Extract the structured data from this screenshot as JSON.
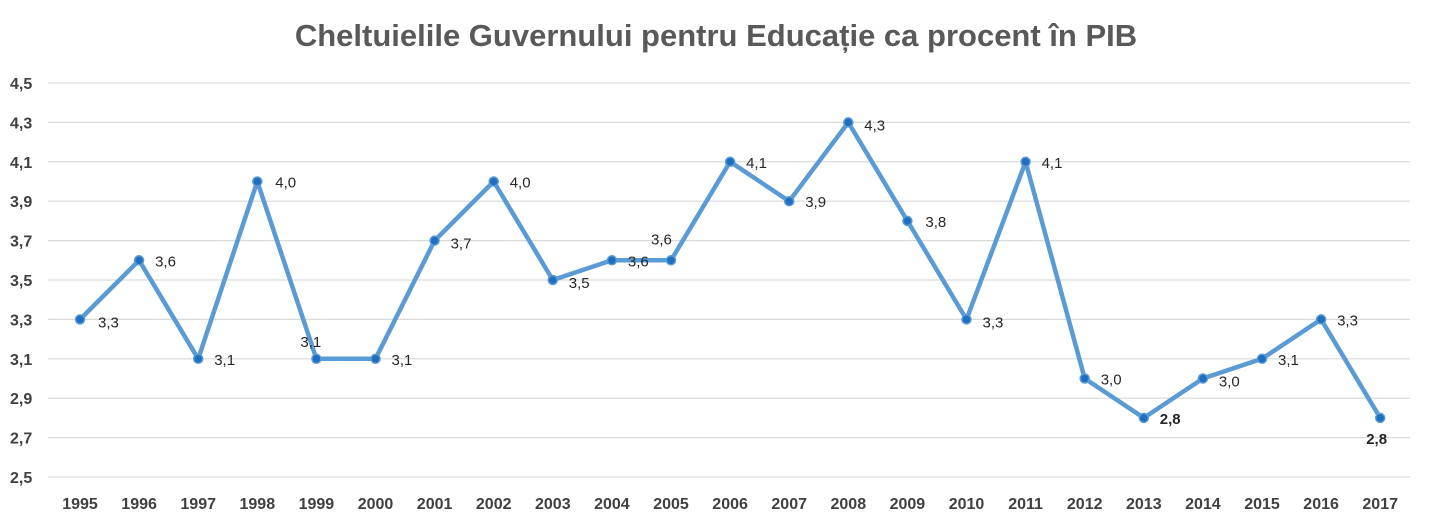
{
  "chart_data": {
    "type": "line",
    "title": "Cheltuielile Guvernului pentru Educație ca procent în PIB",
    "xlabel": "",
    "ylabel": "",
    "categories": [
      "1995",
      "1996",
      "1997",
      "1998",
      "1999",
      "2000",
      "2001",
      "2002",
      "2003",
      "2004",
      "2005",
      "2006",
      "2007",
      "2008",
      "2009",
      "2010",
      "2011",
      "2012",
      "2013",
      "2014",
      "2015",
      "2016",
      "2017"
    ],
    "series": [
      {
        "name": "",
        "color": "#5b9bd5",
        "marker_color": "#1f6fc0",
        "values": [
          3.3,
          3.6,
          3.1,
          4.0,
          3.1,
          3.1,
          3.7,
          4.0,
          3.5,
          3.6,
          3.6,
          4.1,
          3.9,
          4.3,
          3.8,
          3.3,
          4.1,
          3.0,
          2.8,
          3.0,
          3.1,
          3.3,
          2.8
        ],
        "data_labels": [
          "3,3",
          "3,6",
          "3,1",
          "4,0",
          "3,1",
          "3,1",
          "3,7",
          "4,0",
          "3,5",
          "3,6",
          "3,6",
          "4,1",
          "3,9",
          "4,3",
          "3,8",
          "3,3",
          "4,1",
          "3,0",
          "2,8",
          "3,0",
          "3,1",
          "3,3",
          "2,8"
        ]
      }
    ],
    "ylim": [
      2.5,
      4.5
    ],
    "yticks": [
      2.5,
      2.7,
      2.9,
      3.1,
      3.3,
      3.5,
      3.7,
      3.9,
      4.1,
      4.3,
      4.5
    ],
    "ytick_labels": [
      "2,5",
      "2,7",
      "2,9",
      "3,1",
      "3,3",
      "3,5",
      "3,7",
      "3,9",
      "4,1",
      "4,3",
      "4,5"
    ],
    "grid": true,
    "legend": "none",
    "highlight": {
      "index": 22,
      "color": "#c00000"
    }
  }
}
